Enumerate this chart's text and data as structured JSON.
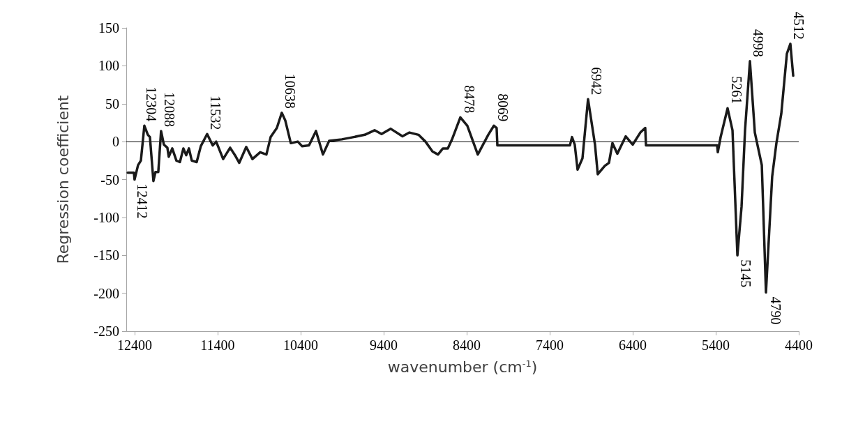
{
  "chart_data": {
    "type": "line",
    "xlabel": "wavenumber (cm$^{-1}$)",
    "ylabel": "Regression coefficient",
    "xlim": [
      12500,
      4400
    ],
    "xticks": [
      12400,
      11400,
      10400,
      9400,
      8400,
      7400,
      6400,
      5400,
      4400
    ],
    "ylim": [
      -250,
      150
    ],
    "yticks": [
      -250,
      -200,
      -150,
      -100,
      -50,
      0,
      50,
      100,
      150
    ],
    "grid": false,
    "marker": "none",
    "line_style": "solid",
    "ref_lines": [
      {
        "axis": "y",
        "value": 0,
        "color": "#000000"
      }
    ],
    "annotations": [
      {
        "text": "12412",
        "x": 12412,
        "y": -50
      },
      {
        "text": "12304",
        "x": 12304,
        "y": 21
      },
      {
        "text": "12088",
        "x": 12088,
        "y": 14
      },
      {
        "text": "11532",
        "x": 11532,
        "y": 10
      },
      {
        "text": "10638",
        "x": 10638,
        "y": 38
      },
      {
        "text": "8478",
        "x": 8478,
        "y": 32
      },
      {
        "text": "8069",
        "x": 8069,
        "y": 21
      },
      {
        "text": "6942",
        "x": 6942,
        "y": 56
      },
      {
        "text": "5261",
        "x": 5261,
        "y": 44
      },
      {
        "text": "5145",
        "x": 5145,
        "y": -150
      },
      {
        "text": "4998",
        "x": 4998,
        "y": 106
      },
      {
        "text": "4790",
        "x": 4790,
        "y": -199
      },
      {
        "text": "4512",
        "x": 4512,
        "y": 129
      }
    ],
    "series": [
      {
        "color": "#1a1a1a",
        "x": [
          12483,
          12408,
          12400,
          12358,
          12324,
          12282,
          12240,
          12215,
          12173,
          12148,
          12114,
          12081,
          12047,
          12005,
          11988,
          11946,
          11896,
          11854,
          11812,
          11778,
          11745,
          11711,
          11652,
          11602,
          11526,
          11459,
          11417,
          11333,
          11249,
          11190,
          11139,
          11055,
          10980,
          10887,
          10812,
          10761,
          10686,
          10627,
          10585,
          10518,
          10434,
          10383,
          10299,
          10215,
          10131,
          10056,
          9904,
          9761,
          9627,
          9509,
          9425,
          9316,
          9173,
          9089,
          8980,
          8896,
          8812,
          8745,
          8686,
          8627,
          8576,
          8476,
          8392,
          8266,
          8140,
          8072,
          8039,
          8030,
          7156,
          7131,
          7098,
          7064,
          7005,
          6938,
          6854,
          6821,
          6736,
          6686,
          6644,
          6585,
          6484,
          6400,
          6308,
          6249,
          6240,
          5383,
          5375,
          5341,
          5257,
          5198,
          5139,
          5089,
          5047,
          4988,
          4929,
          4845,
          4795,
          4720,
          4669,
          4610,
          4543,
          4501,
          4467
        ],
        "values": [
          -41,
          -41,
          -50,
          -31,
          -25,
          21,
          9,
          6,
          -52,
          -40,
          -40,
          14,
          -4,
          -8,
          -20,
          -9,
          -25,
          -27,
          -9,
          -18,
          -9,
          -25,
          -27,
          -6,
          10,
          -5,
          0,
          -23,
          -8,
          -18,
          -28,
          -7,
          -23,
          -14,
          -17,
          6,
          18,
          38,
          28,
          -2,
          0,
          -6,
          -5,
          14,
          -17,
          1,
          3,
          6,
          9,
          15,
          10,
          17,
          7,
          12,
          9,
          0,
          -13,
          -17,
          -9,
          -9,
          3,
          32,
          21,
          -17,
          9,
          21,
          18,
          -5,
          -5,
          6,
          -4,
          -37,
          -22,
          56,
          -4,
          -43,
          -32,
          -28,
          -2,
          -16,
          7,
          -4,
          12,
          18,
          -5,
          -5,
          -14,
          6,
          44,
          15,
          -150,
          -86,
          15,
          106,
          12,
          -31,
          -199,
          -46,
          -2,
          37,
          116,
          129,
          87
        ]
      }
    ]
  }
}
